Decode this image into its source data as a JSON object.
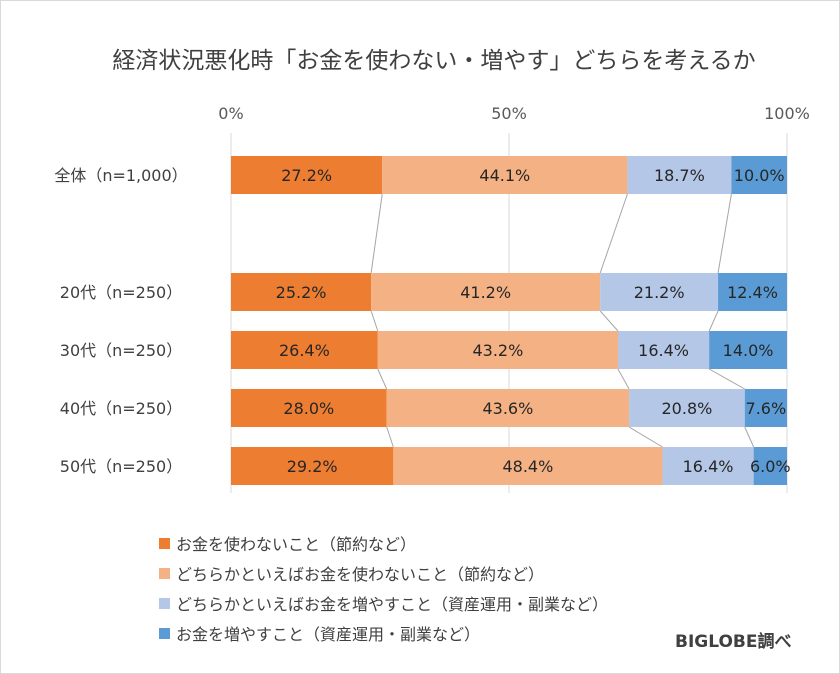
{
  "chart_data": {
    "type": "bar",
    "orientation": "horizontal",
    "stacked": true,
    "title": "経済状況悪化時「お金を使わない・増やす」どちらを考えるか",
    "categories": [
      "全体（n=1,000）",
      "20代（n=250）",
      "30代（n=250）",
      "40代（n=250）",
      "50代（n=250）"
    ],
    "series": [
      {
        "name": "お金を使わないこと（節約など）",
        "color": "#ED7D31",
        "values": [
          27.2,
          25.2,
          26.4,
          28.0,
          29.2
        ]
      },
      {
        "name": "どちらかといえばお金を使わないこと（節約など）",
        "color": "#F4B183",
        "values": [
          44.1,
          41.2,
          43.2,
          43.6,
          48.4
        ]
      },
      {
        "name": "どちらかといえばお金を増やすこと（資産運用・副業など）",
        "color": "#B4C7E7",
        "values": [
          18.7,
          21.2,
          16.4,
          20.8,
          16.4
        ]
      },
      {
        "name": "お金を増やすこと（資産運用・副業など）",
        "color": "#5B9BD5",
        "values": [
          10.0,
          12.4,
          14.0,
          7.6,
          6.0
        ]
      }
    ],
    "data_labels": [
      [
        "27.2%",
        "44.1%",
        "18.7%",
        "10.0%"
      ],
      [
        "25.2%",
        "41.2%",
        "21.2%",
        "12.4%"
      ],
      [
        "26.4%",
        "43.2%",
        "16.4%",
        "14.0%"
      ],
      [
        "28.0%",
        "43.6%",
        "20.8%",
        "7.6%"
      ],
      [
        "29.2%",
        "48.4%",
        "16.4%",
        "6.0%"
      ]
    ],
    "xticks": [
      "0%",
      "50%",
      "100%"
    ],
    "xlim": [
      0,
      100
    ],
    "grid": true,
    "legend_position": "bottom-left"
  },
  "source": "BIGLOBE調べ"
}
